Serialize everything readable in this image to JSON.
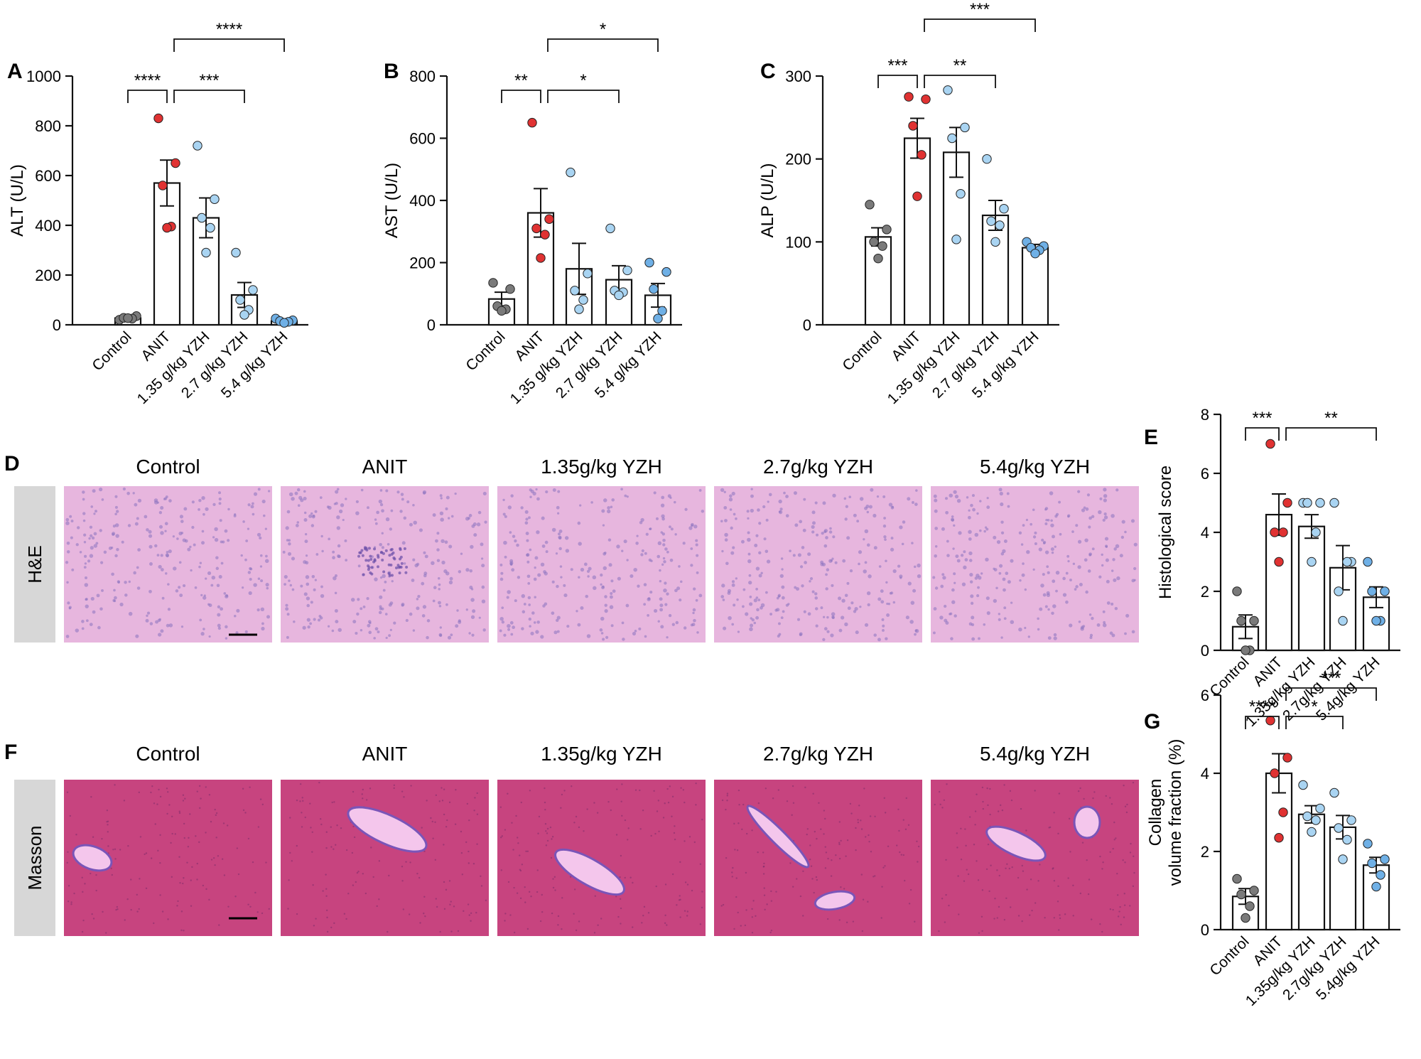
{
  "panel_labels": {
    "A": "A",
    "B": "B",
    "C": "C",
    "D": "D",
    "E": "E",
    "F": "F",
    "G": "G"
  },
  "colors": {
    "control": "#7a7a7a",
    "anit": "#e03232",
    "yzh": "#a9d4f2",
    "yzh_high": "#6fb0e6",
    "he_bg": "#e7b6de",
    "he_nuclei": "#8a72c0",
    "masson_bg": "#c7447f",
    "masson_vessel": "#f4c6ec",
    "row_label_bg": "#d7d7d7"
  },
  "chart_data": [
    {
      "type": "bar",
      "panel": "A",
      "categories": [
        "Control",
        "ANIT",
        "1.35 g/kg YZH",
        "2.7 g/kg YZH",
        "5.4 g/kg YZH"
      ],
      "values": [
        27,
        570,
        430,
        120,
        15
      ],
      "sem": [
        6,
        92,
        80,
        50,
        5
      ],
      "points": [
        [
          20,
          35,
          28,
          25,
          27
        ],
        [
          830,
          650,
          560,
          395,
          390
        ],
        [
          720,
          505,
          430,
          390,
          290
        ],
        [
          290,
          140,
          100,
          60,
          40
        ],
        [
          25,
          18,
          15,
          12,
          8
        ]
      ],
      "ylabel": "ALT (U/L)",
      "ylim": [
        0,
        1000
      ],
      "yticks": [
        0,
        200,
        400,
        600,
        800,
        1000
      ],
      "significance": [
        {
          "from": 0,
          "to": 1,
          "label": "****"
        },
        {
          "from": 1,
          "to": 3,
          "label": "***"
        },
        {
          "from": 1,
          "to": 4,
          "label": "****"
        }
      ]
    },
    {
      "type": "bar",
      "panel": "B",
      "categories": [
        "Control",
        "ANIT",
        "1.35 g/kg YZH",
        "2.7 g/kg YZH",
        "5.4 g/kg YZH"
      ],
      "values": [
        83,
        360,
        180,
        145,
        95
      ],
      "sem": [
        22,
        78,
        82,
        45,
        38
      ],
      "points": [
        [
          135,
          115,
          60,
          50,
          45
        ],
        [
          650,
          340,
          310,
          290,
          215
        ],
        [
          490,
          165,
          110,
          80,
          50
        ],
        [
          310,
          175,
          110,
          105,
          95
        ],
        [
          200,
          170,
          115,
          45,
          20
        ]
      ],
      "ylabel": "AST (U/L)",
      "ylim": [
        0,
        800
      ],
      "yticks": [
        0,
        200,
        400,
        600,
        800
      ],
      "significance": [
        {
          "from": 0,
          "to": 1,
          "label": "**"
        },
        {
          "from": 1,
          "to": 3,
          "label": "*"
        },
        {
          "from": 1,
          "to": 4,
          "label": "*"
        }
      ]
    },
    {
      "type": "bar",
      "panel": "C",
      "categories": [
        "Control",
        "ANIT",
        "1.35 g/kg YZH",
        "2.7 g/kg YZH",
        "5.4 g/kg YZH"
      ],
      "values": [
        106,
        225,
        208,
        132,
        93
      ],
      "sem": [
        11,
        24,
        30,
        18,
        4
      ],
      "points": [
        [
          145,
          115,
          100,
          95,
          80
        ],
        [
          275,
          272,
          240,
          205,
          155
        ],
        [
          283,
          238,
          225,
          158,
          103
        ],
        [
          200,
          140,
          125,
          120,
          100
        ],
        [
          100,
          95,
          93,
          90,
          86
        ]
      ],
      "ylabel": "ALP (U/L)",
      "ylim": [
        0,
        300
      ],
      "yticks": [
        0,
        100,
        200,
        300
      ],
      "significance": [
        {
          "from": 0,
          "to": 1,
          "label": "***"
        },
        {
          "from": 1,
          "to": 3,
          "label": "**"
        },
        {
          "from": 1,
          "to": 4,
          "label": "***"
        }
      ]
    },
    {
      "type": "bar",
      "panel": "E",
      "categories": [
        "Control",
        "ANIT",
        "1.35g/kg YZH",
        "2.7g/kg YZH",
        "5.4g/kg YZH"
      ],
      "values": [
        0.8,
        4.6,
        4.2,
        2.8,
        1.8
      ],
      "sem": [
        0.4,
        0.7,
        0.4,
        0.75,
        0.35
      ],
      "points": [
        [
          2.0,
          1.0,
          1.0,
          0,
          0
        ],
        [
          7.0,
          5.0,
          4.0,
          4.0,
          3.0
        ],
        [
          5.0,
          5.0,
          5.0,
          4.0,
          3.0
        ],
        [
          5.0,
          3.0,
          2.0,
          3.0,
          1.0
        ],
        [
          3.0,
          2.0,
          2.0,
          1.0,
          1.0
        ]
      ],
      "ylabel": "Histological score",
      "ylim": [
        0,
        8
      ],
      "yticks": [
        0,
        2,
        4,
        6,
        8
      ],
      "significance": [
        {
          "from": 0,
          "to": 1,
          "label": "***"
        },
        {
          "from": 1,
          "to": 4,
          "label": "**"
        }
      ]
    },
    {
      "type": "bar",
      "panel": "G",
      "categories": [
        "Control",
        "ANIT",
        "1.35g/kg YZH",
        "2.7g/kg YZH",
        "5.4g/kg YZH"
      ],
      "values": [
        0.85,
        4.0,
        2.95,
        2.62,
        1.65
      ],
      "sem": [
        0.2,
        0.5,
        0.22,
        0.3,
        0.2
      ],
      "points": [
        [
          1.3,
          1.0,
          0.9,
          0.6,
          0.3
        ],
        [
          5.35,
          4.4,
          4.0,
          3.0,
          2.35
        ],
        [
          3.7,
          3.1,
          2.9,
          2.8,
          2.5
        ],
        [
          3.5,
          2.8,
          2.6,
          2.3,
          1.8
        ],
        [
          2.2,
          1.8,
          1.7,
          1.4,
          1.1
        ]
      ],
      "ylabel": "Collagen volume fraction (%)",
      "ylim": [
        0,
        6
      ],
      "yticks": [
        0,
        2,
        4,
        6
      ],
      "significance": [
        {
          "from": 0,
          "to": 1,
          "label": "****"
        },
        {
          "from": 1,
          "to": 3,
          "label": "*"
        },
        {
          "from": 1,
          "to": 4,
          "label": "***"
        }
      ]
    }
  ],
  "histology": {
    "he": {
      "row_label": "H&E",
      "columns": [
        "Control",
        "ANIT",
        "1.35g/kg YZH",
        "2.7g/kg YZH",
        "5.4g/kg YZH"
      ]
    },
    "masson": {
      "row_label": "Masson",
      "columns": [
        "Control",
        "ANIT",
        "1.35g/kg YZH",
        "2.7g/kg YZH",
        "5.4g/kg YZH"
      ]
    }
  }
}
